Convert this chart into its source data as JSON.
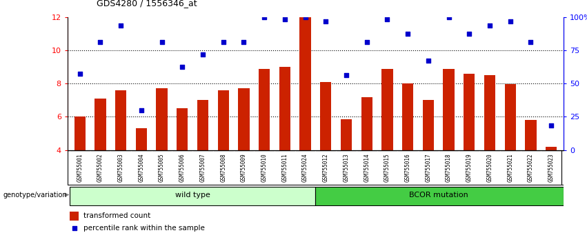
{
  "title": "GDS4280 / 1556346_at",
  "samples": [
    "GSM755001",
    "GSM755002",
    "GSM755003",
    "GSM755004",
    "GSM755005",
    "GSM755006",
    "GSM755007",
    "GSM755008",
    "GSM755009",
    "GSM755010",
    "GSM755011",
    "GSM755024",
    "GSM755012",
    "GSM755013",
    "GSM755014",
    "GSM755015",
    "GSM755016",
    "GSM755017",
    "GSM755018",
    "GSM755019",
    "GSM755020",
    "GSM755021",
    "GSM755022",
    "GSM755023"
  ],
  "transformed_count": [
    6.0,
    7.1,
    7.6,
    5.3,
    7.7,
    6.5,
    7.0,
    7.6,
    7.7,
    8.9,
    9.0,
    12.0,
    8.1,
    5.85,
    7.2,
    8.9,
    8.0,
    7.0,
    8.9,
    8.6,
    8.5,
    7.95,
    5.8,
    4.2
  ],
  "percentile_rank_pct": [
    57.5,
    81.25,
    93.75,
    29.69,
    81.25,
    62.5,
    71.88,
    81.25,
    81.25,
    100.0,
    98.44,
    100.0,
    96.88,
    56.25,
    81.25,
    98.44,
    87.5,
    67.19,
    100.0,
    87.5,
    93.75,
    96.88,
    81.25,
    18.75
  ],
  "wild_type_count": 12,
  "ylim_left": [
    4,
    12
  ],
  "ylim_right": [
    0,
    100
  ],
  "yticks_left": [
    4,
    6,
    8,
    10,
    12
  ],
  "yticks_right": [
    0,
    25,
    50,
    75,
    100
  ],
  "ytick_labels_right": [
    "0",
    "25",
    "50",
    "75",
    "100%"
  ],
  "bar_color": "#cc2200",
  "dot_color": "#0000cc",
  "wild_type_bg": "#ccffcc",
  "bcor_bg": "#44cc44",
  "label_bg": "#cccccc",
  "wild_type_label": "wild type",
  "bcor_label": "BCOR mutation",
  "genotype_label": "genotype/variation",
  "legend_bar": "transformed count",
  "legend_dot": "percentile rank within the sample",
  "dotted_lines": [
    6,
    8,
    10
  ]
}
